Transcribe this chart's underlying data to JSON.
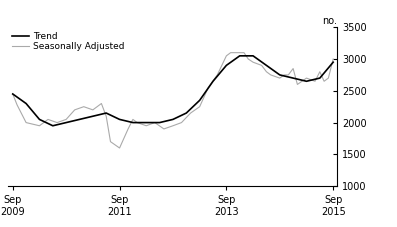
{
  "title": "",
  "ylabel": "no.",
  "ylim": [
    1000,
    3500
  ],
  "yticks": [
    1000,
    1500,
    2000,
    2500,
    3000,
    3500
  ],
  "xlabel_tick_positions": [
    2009.67,
    2011.67,
    2013.67,
    2015.67
  ],
  "xlabel_tick_labels": [
    "Sep\n2009",
    "Sep\n2011",
    "Sep\n2013",
    "Sep\n2015"
  ],
  "legend_trend": "Trend",
  "legend_sa": "Seasonally Adjusted",
  "trend_color": "#000000",
  "sa_color": "#aaaaaa",
  "background_color": "#ffffff",
  "trend_linewidth": 1.2,
  "sa_linewidth": 0.8,
  "x_start": 2009.58,
  "x_end": 2015.75,
  "trend_data": [
    [
      2009.67,
      2450
    ],
    [
      2009.92,
      2300
    ],
    [
      2010.17,
      2050
    ],
    [
      2010.42,
      1950
    ],
    [
      2010.67,
      2000
    ],
    [
      2010.92,
      2050
    ],
    [
      2011.17,
      2100
    ],
    [
      2011.42,
      2150
    ],
    [
      2011.67,
      2050
    ],
    [
      2011.92,
      2000
    ],
    [
      2012.17,
      2000
    ],
    [
      2012.42,
      2000
    ],
    [
      2012.67,
      2050
    ],
    [
      2012.92,
      2150
    ],
    [
      2013.17,
      2350
    ],
    [
      2013.42,
      2650
    ],
    [
      2013.67,
      2900
    ],
    [
      2013.92,
      3050
    ],
    [
      2014.17,
      3050
    ],
    [
      2014.42,
      2900
    ],
    [
      2014.67,
      2750
    ],
    [
      2014.92,
      2700
    ],
    [
      2015.17,
      2650
    ],
    [
      2015.42,
      2700
    ],
    [
      2015.67,
      2950
    ]
  ],
  "sa_data": [
    [
      2009.67,
      2450
    ],
    [
      2009.75,
      2280
    ],
    [
      2009.92,
      2000
    ],
    [
      2010.17,
      1950
    ],
    [
      2010.33,
      2050
    ],
    [
      2010.5,
      2000
    ],
    [
      2010.67,
      2050
    ],
    [
      2010.83,
      2200
    ],
    [
      2011.0,
      2250
    ],
    [
      2011.17,
      2200
    ],
    [
      2011.33,
      2300
    ],
    [
      2011.42,
      2100
    ],
    [
      2011.5,
      1700
    ],
    [
      2011.67,
      1600
    ],
    [
      2011.83,
      1900
    ],
    [
      2011.92,
      2050
    ],
    [
      2012.0,
      2000
    ],
    [
      2012.17,
      1950
    ],
    [
      2012.33,
      2000
    ],
    [
      2012.5,
      1900
    ],
    [
      2012.67,
      1950
    ],
    [
      2012.83,
      2000
    ],
    [
      2013.0,
      2150
    ],
    [
      2013.17,
      2250
    ],
    [
      2013.33,
      2550
    ],
    [
      2013.5,
      2750
    ],
    [
      2013.67,
      3050
    ],
    [
      2013.75,
      3100
    ],
    [
      2013.83,
      3100
    ],
    [
      2013.92,
      3100
    ],
    [
      2014.0,
      3100
    ],
    [
      2014.08,
      3000
    ],
    [
      2014.17,
      2950
    ],
    [
      2014.33,
      2900
    ],
    [
      2014.42,
      2800
    ],
    [
      2014.5,
      2750
    ],
    [
      2014.67,
      2700
    ],
    [
      2014.75,
      2750
    ],
    [
      2014.83,
      2750
    ],
    [
      2014.92,
      2850
    ],
    [
      2015.0,
      2600
    ],
    [
      2015.17,
      2700
    ],
    [
      2015.33,
      2650
    ],
    [
      2015.42,
      2800
    ],
    [
      2015.5,
      2650
    ],
    [
      2015.58,
      2700
    ],
    [
      2015.67,
      3000
    ]
  ]
}
